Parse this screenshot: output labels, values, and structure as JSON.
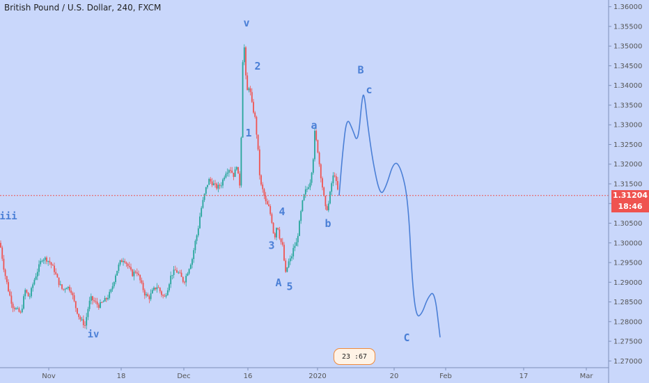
{
  "header": {
    "title": "British Pound / U.S. Dollar, 240, FXCM"
  },
  "colors": {
    "background": "#c9d7fb",
    "up_candle": "#26a69a",
    "down_candle": "#ef5350",
    "wave_line": "#4a7fd6",
    "price_line": "#ef5350"
  },
  "price_tag": {
    "value": "1.31204",
    "countdown": "18:46"
  },
  "event_badge": {
    "text": "23 :67"
  },
  "chart_data": {
    "type": "line",
    "instrument": "British Pound / U.S. Dollar",
    "interval": "240",
    "source": "FXCM",
    "ylim": [
      1.269,
      1.361
    ],
    "y_ticks": [
      1.36,
      1.355,
      1.35,
      1.345,
      1.34,
      1.335,
      1.33,
      1.325,
      1.32,
      1.315,
      1.31,
      1.305,
      1.3,
      1.295,
      1.29,
      1.285,
      1.28,
      1.275,
      1.27
    ],
    "y_tick_labels": [
      "1.36000",
      "1.35500",
      "1.35000",
      "1.34500",
      "1.34000",
      "1.33500",
      "1.33000",
      "1.32500",
      "1.32000",
      "1.31500",
      "1.31000",
      "1.30500",
      "1.30000",
      "1.29500",
      "1.29000",
      "1.28500",
      "1.28000",
      "1.27500",
      "1.27000"
    ],
    "x_tick_labels": [
      "Nov",
      "18",
      "Dec",
      "16",
      "2020",
      "20",
      "Feb",
      "17",
      "Mar"
    ],
    "x_tick_pos": [
      70,
      174,
      264,
      356,
      456,
      566,
      640,
      752,
      842
    ],
    "current_price": 1.31204,
    "price_path": [
      [
        0,
        1.3
      ],
      [
        6,
        1.293
      ],
      [
        12,
        1.288
      ],
      [
        18,
        1.284
      ],
      [
        24,
        1.283
      ],
      [
        30,
        1.282
      ],
      [
        36,
        1.288
      ],
      [
        42,
        1.286
      ],
      [
        48,
        1.29
      ],
      [
        54,
        1.293
      ],
      [
        60,
        1.296
      ],
      [
        66,
        1.296
      ],
      [
        72,
        1.295
      ],
      [
        78,
        1.293
      ],
      [
        84,
        1.29
      ],
      [
        90,
        1.288
      ],
      [
        96,
        1.289
      ],
      [
        102,
        1.288
      ],
      [
        108,
        1.284
      ],
      [
        114,
        1.281
      ],
      [
        118,
        1.28
      ],
      [
        122,
        1.279
      ],
      [
        126,
        1.283
      ],
      [
        130,
        1.286
      ],
      [
        136,
        1.285
      ],
      [
        142,
        1.284
      ],
      [
        148,
        1.285
      ],
      [
        154,
        1.286
      ],
      [
        160,
        1.288
      ],
      [
        166,
        1.292
      ],
      [
        172,
        1.295
      ],
      [
        178,
        1.296
      ],
      [
        184,
        1.294
      ],
      [
        190,
        1.292
      ],
      [
        196,
        1.293
      ],
      [
        202,
        1.29
      ],
      [
        208,
        1.287
      ],
      [
        214,
        1.286
      ],
      [
        220,
        1.288
      ],
      [
        226,
        1.289
      ],
      [
        232,
        1.287
      ],
      [
        236,
        1.286
      ],
      [
        240,
        1.288
      ],
      [
        246,
        1.292
      ],
      [
        252,
        1.293
      ],
      [
        258,
        1.292
      ],
      [
        264,
        1.29
      ],
      [
        270,
        1.293
      ],
      [
        276,
        1.296
      ],
      [
        280,
        1.3
      ],
      [
        284,
        1.303
      ],
      [
        288,
        1.308
      ],
      [
        292,
        1.311
      ],
      [
        296,
        1.314
      ],
      [
        300,
        1.316
      ],
      [
        306,
        1.315
      ],
      [
        312,
        1.314
      ],
      [
        318,
        1.315
      ],
      [
        324,
        1.318
      ],
      [
        330,
        1.319
      ],
      [
        336,
        1.317
      ],
      [
        340,
        1.32
      ],
      [
        344,
        1.314
      ],
      [
        346,
        1.323
      ],
      [
        348,
        1.344
      ],
      [
        350,
        1.352
      ],
      [
        352,
        1.346
      ],
      [
        354,
        1.338
      ],
      [
        358,
        1.34
      ],
      [
        362,
        1.335
      ],
      [
        366,
        1.332
      ],
      [
        370,
        1.325
      ],
      [
        372,
        1.319
      ],
      [
        374,
        1.315
      ],
      [
        378,
        1.313
      ],
      [
        382,
        1.31
      ],
      [
        386,
        1.309
      ],
      [
        390,
        1.306
      ],
      [
        394,
        1.301
      ],
      [
        398,
        1.305
      ],
      [
        402,
        1.301
      ],
      [
        406,
        1.299
      ],
      [
        410,
        1.292
      ],
      [
        414,
        1.295
      ],
      [
        418,
        1.296
      ],
      [
        422,
        1.299
      ],
      [
        426,
        1.3
      ],
      [
        430,
        1.305
      ],
      [
        434,
        1.31
      ],
      [
        438,
        1.313
      ],
      [
        442,
        1.314
      ],
      [
        446,
        1.316
      ],
      [
        450,
        1.322
      ],
      [
        452,
        1.328
      ],
      [
        456,
        1.324
      ],
      [
        460,
        1.318
      ],
      [
        464,
        1.313
      ],
      [
        468,
        1.308
      ],
      [
        472,
        1.31
      ],
      [
        476,
        1.315
      ],
      [
        480,
        1.318
      ],
      [
        484,
        1.314
      ],
      [
        487,
        1.312
      ]
    ],
    "forecast_path": [
      [
        487,
        1.312
      ],
      [
        492,
        1.323
      ],
      [
        498,
        1.332
      ],
      [
        506,
        1.329
      ],
      [
        514,
        1.325
      ],
      [
        520,
        1.337
      ],
      [
        523,
        1.338
      ],
      [
        528,
        1.33
      ],
      [
        536,
        1.32
      ],
      [
        546,
        1.312
      ],
      [
        554,
        1.314
      ],
      [
        566,
        1.321
      ],
      [
        576,
        1.319
      ],
      [
        586,
        1.311
      ],
      [
        592,
        1.29
      ],
      [
        598,
        1.281
      ],
      [
        606,
        1.282
      ],
      [
        614,
        1.286
      ],
      [
        624,
        1.288
      ],
      [
        632,
        1.276
      ]
    ],
    "wave_labels": [
      {
        "text": "iii",
        "x": 12,
        "y": 1.306
      },
      {
        "text": "iv",
        "x": 134,
        "y": 1.276
      },
      {
        "text": "v",
        "x": 354,
        "y": 1.355
      },
      {
        "text": "2",
        "x": 370,
        "y": 1.344
      },
      {
        "text": "1",
        "x": 357,
        "y": 1.327
      },
      {
        "text": "4",
        "x": 405,
        "y": 1.307
      },
      {
        "text": "3",
        "x": 390,
        "y": 1.2985
      },
      {
        "text": "A",
        "x": 400,
        "y": 1.289
      },
      {
        "text": "5",
        "x": 416,
        "y": 1.288
      },
      {
        "text": "a",
        "x": 451,
        "y": 1.329
      },
      {
        "text": "b",
        "x": 471,
        "y": 1.304
      },
      {
        "text": "B",
        "x": 518,
        "y": 1.343
      },
      {
        "text": "c",
        "x": 530,
        "y": 1.338
      },
      {
        "text": "C",
        "x": 584,
        "y": 1.275
      }
    ]
  }
}
